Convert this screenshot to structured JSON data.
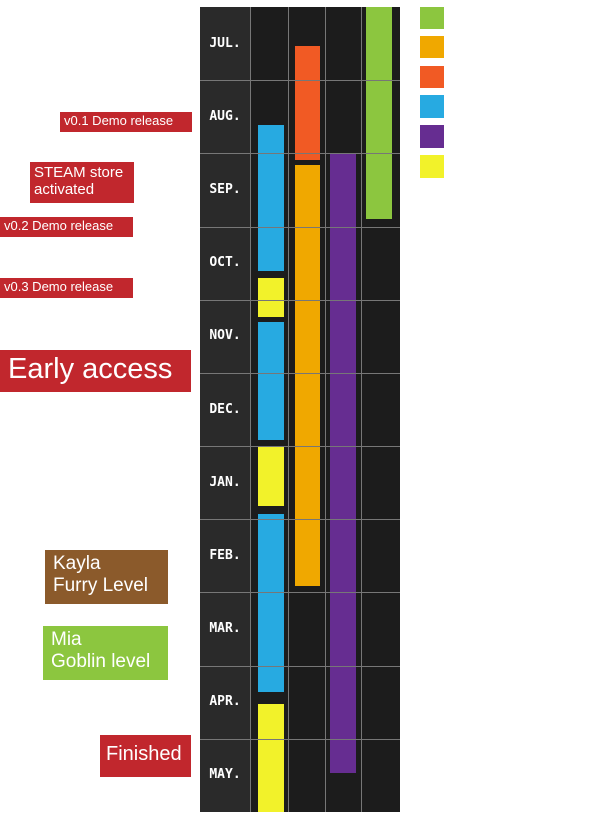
{
  "months": [
    "JUL.",
    "AUG.",
    "SEP.",
    "OCT.",
    "NOV.",
    "DEC.",
    "JAN.",
    "FEB.",
    "MAR.",
    "APR.",
    "MAY."
  ],
  "milestones": [
    {
      "lines": [
        "v0.1 Demo release"
      ]
    },
    {
      "lines": [
        "STEAM store",
        "activated"
      ]
    },
    {
      "lines": [
        "v0.2 Demo release"
      ]
    },
    {
      "lines": [
        "v0.3 Demo release"
      ]
    },
    {
      "lines": [
        "Early access"
      ]
    },
    {
      "lines": [
        "Kayla",
        "Furry Level"
      ]
    },
    {
      "lines": [
        "Mia",
        "Goblin level"
      ]
    },
    {
      "lines": [
        "Finished"
      ]
    }
  ]
}
